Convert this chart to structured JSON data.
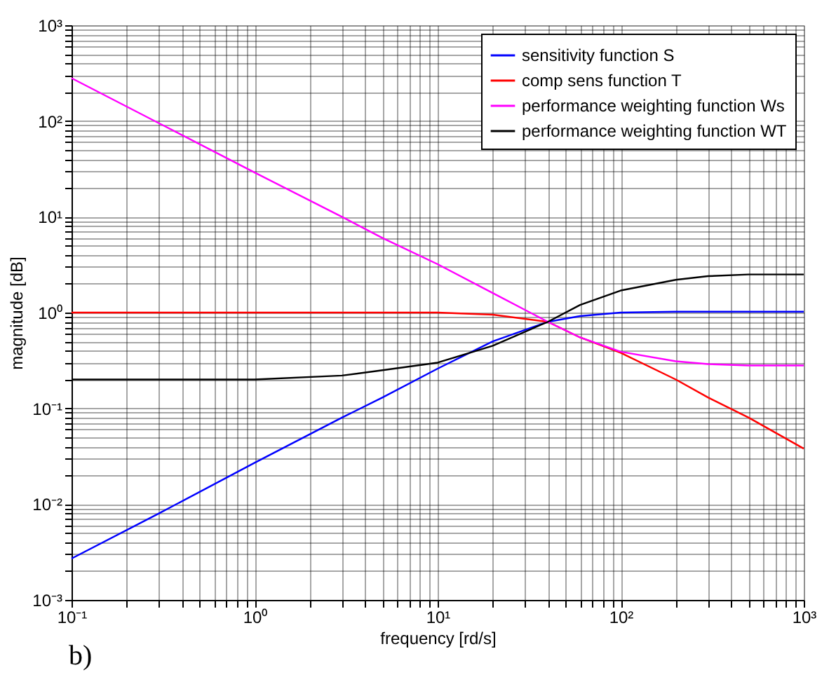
{
  "chart_data": {
    "type": "line",
    "xlabel": "frequency [rd/s]",
    "ylabel": "magnitude [dB]",
    "log": "xy",
    "grid": true,
    "legend": "top right",
    "line_style": "solid",
    "marker": "none",
    "annotations": [
      "b)"
    ],
    "xlim": [
      0.1,
      1000
    ],
    "ylim": [
      0.001,
      1000
    ],
    "xticks": [
      {
        "value": 0.1,
        "label": "10⁻¹"
      },
      {
        "value": 0.2,
        "label": null
      },
      {
        "value": 0.3,
        "label": null
      },
      {
        "value": 0.4,
        "label": null
      },
      {
        "value": 0.5,
        "label": null
      },
      {
        "value": 0.6,
        "label": null
      },
      {
        "value": 0.7,
        "label": null
      },
      {
        "value": 0.8,
        "label": null
      },
      {
        "value": 0.9,
        "label": null
      },
      {
        "value": 1,
        "label": "10⁰"
      },
      {
        "value": 2,
        "label": null
      },
      {
        "value": 3,
        "label": null
      },
      {
        "value": 4,
        "label": null
      },
      {
        "value": 5,
        "label": null
      },
      {
        "value": 6,
        "label": null
      },
      {
        "value": 7,
        "label": null
      },
      {
        "value": 8,
        "label": null
      },
      {
        "value": 9,
        "label": null
      },
      {
        "value": 10,
        "label": "10¹"
      },
      {
        "value": 20,
        "label": null
      },
      {
        "value": 30,
        "label": null
      },
      {
        "value": 40,
        "label": null
      },
      {
        "value": 50,
        "label": null
      },
      {
        "value": 60,
        "label": null
      },
      {
        "value": 70,
        "label": null
      },
      {
        "value": 80,
        "label": null
      },
      {
        "value": 90,
        "label": null
      },
      {
        "value": 100,
        "label": "10²"
      },
      {
        "value": 200,
        "label": null
      },
      {
        "value": 300,
        "label": null
      },
      {
        "value": 400,
        "label": null
      },
      {
        "value": 500,
        "label": null
      },
      {
        "value": 600,
        "label": null
      },
      {
        "value": 700,
        "label": null
      },
      {
        "value": 800,
        "label": null
      },
      {
        "value": 900,
        "label": null
      },
      {
        "value": 1000,
        "label": "10³"
      }
    ],
    "yticks": [
      {
        "value": 0.001,
        "label": "10⁻³"
      },
      {
        "value": 0.002,
        "label": null
      },
      {
        "value": 0.003,
        "label": null
      },
      {
        "value": 0.004,
        "label": null
      },
      {
        "value": 0.005,
        "label": null
      },
      {
        "value": 0.006,
        "label": null
      },
      {
        "value": 0.007,
        "label": null
      },
      {
        "value": 0.008,
        "label": null
      },
      {
        "value": 0.009,
        "label": null
      },
      {
        "value": 0.01,
        "label": "10⁻²"
      },
      {
        "value": 0.02,
        "label": null
      },
      {
        "value": 0.03,
        "label": null
      },
      {
        "value": 0.04,
        "label": null
      },
      {
        "value": 0.05,
        "label": null
      },
      {
        "value": 0.06,
        "label": null
      },
      {
        "value": 0.07,
        "label": null
      },
      {
        "value": 0.08,
        "label": null
      },
      {
        "value": 0.09,
        "label": null
      },
      {
        "value": 0.1,
        "label": "10⁻¹"
      },
      {
        "value": 0.2,
        "label": null
      },
      {
        "value": 0.3,
        "label": null
      },
      {
        "value": 0.4,
        "label": null
      },
      {
        "value": 0.5,
        "label": null
      },
      {
        "value": 0.6,
        "label": null
      },
      {
        "value": 0.7,
        "label": null
      },
      {
        "value": 0.8,
        "label": null
      },
      {
        "value": 0.9,
        "label": null
      },
      {
        "value": 1,
        "label": "10⁰"
      },
      {
        "value": 2,
        "label": null
      },
      {
        "value": 3,
        "label": null
      },
      {
        "value": 4,
        "label": null
      },
      {
        "value": 5,
        "label": null
      },
      {
        "value": 6,
        "label": null
      },
      {
        "value": 7,
        "label": null
      },
      {
        "value": 8,
        "label": null
      },
      {
        "value": 9,
        "label": null
      },
      {
        "value": 10,
        "label": "10¹"
      },
      {
        "value": 20,
        "label": null
      },
      {
        "value": 30,
        "label": null
      },
      {
        "value": 40,
        "label": null
      },
      {
        "value": 50,
        "label": null
      },
      {
        "value": 60,
        "label": null
      },
      {
        "value": 70,
        "label": null
      },
      {
        "value": 80,
        "label": null
      },
      {
        "value": 90,
        "label": null
      },
      {
        "value": 100,
        "label": "10²"
      },
      {
        "value": 200,
        "label": null
      },
      {
        "value": 300,
        "label": null
      },
      {
        "value": 400,
        "label": null
      },
      {
        "value": 500,
        "label": null
      },
      {
        "value": 600,
        "label": null
      },
      {
        "value": 700,
        "label": null
      },
      {
        "value": 800,
        "label": null
      },
      {
        "value": 900,
        "label": null
      },
      {
        "value": 1000,
        "label": "10³"
      }
    ],
    "x": [
      0.1,
      0.3,
      1,
      3,
      5,
      10,
      20,
      40,
      60,
      100,
      200,
      300,
      500,
      1000
    ],
    "series": [
      {
        "name": "sensitivity function S",
        "color": "#0000ff",
        "values": [
          0.0027,
          0.008,
          0.027,
          0.08,
          0.13,
          0.26,
          0.5,
          0.8,
          0.92,
          1.0,
          1.02,
          1.02,
          1.02,
          1.02
        ]
      },
      {
        "name": "comp sens function T",
        "color": "#ff0000",
        "values": [
          1,
          1,
          1,
          1,
          1,
          1,
          0.95,
          0.8,
          0.55,
          0.38,
          0.2,
          0.13,
          0.08,
          0.038
        ]
      },
      {
        "name": "performance weighting function Ws",
        "color": "#ff00ff",
        "values": [
          280,
          95,
          29,
          10,
          6,
          3.2,
          1.6,
          0.8,
          0.55,
          0.39,
          0.31,
          0.29,
          0.28,
          0.28
        ]
      },
      {
        "name": "performance weighting function WT",
        "color": "#000000",
        "values": [
          0.2,
          0.2,
          0.2,
          0.22,
          0.25,
          0.3,
          0.45,
          0.8,
          1.2,
          1.7,
          2.2,
          2.4,
          2.5,
          2.5
        ]
      }
    ]
  }
}
